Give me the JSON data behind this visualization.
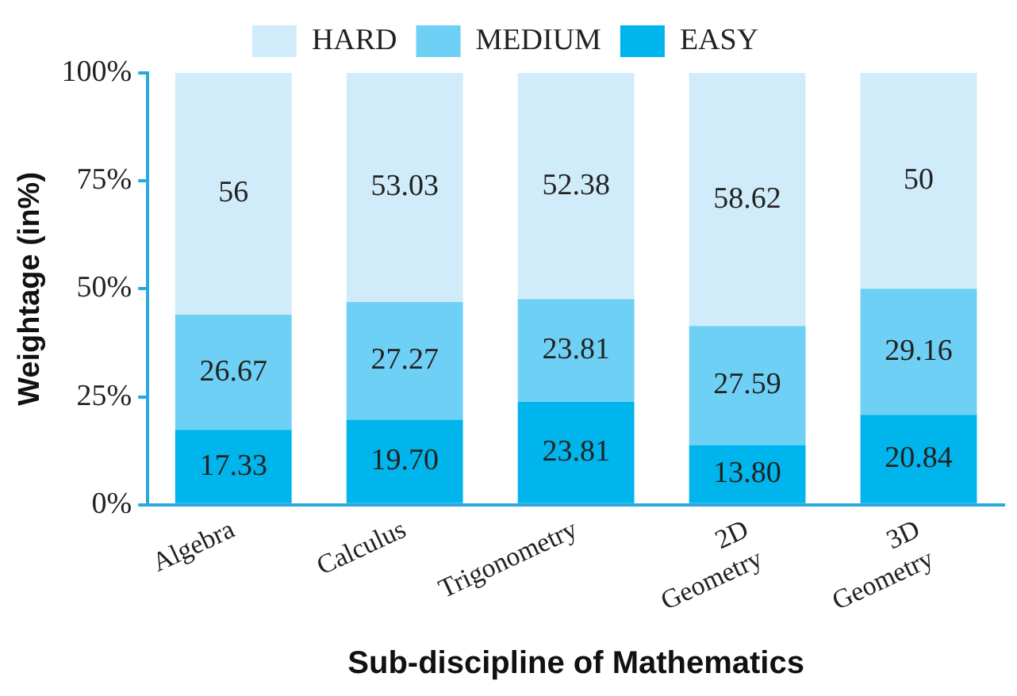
{
  "chart_data": {
    "type": "bar",
    "stacked": true,
    "xlabel": "Sub-discipline of Mathematics",
    "ylabel": "Weightage (in%)",
    "categories": [
      "Algebra",
      "Calculus",
      "Trigonometry",
      "2D Geometry",
      "3D Geometry"
    ],
    "series": [
      {
        "name": "EASY",
        "color": "#00b4ec",
        "values": [
          17.33,
          19.7,
          23.81,
          13.8,
          20.84
        ],
        "value_labels": [
          "17.33",
          "19.70",
          "23.81",
          "13.80",
          "20.84"
        ]
      },
      {
        "name": "MEDIUM",
        "color": "#6fd0f6",
        "values": [
          26.67,
          27.27,
          23.81,
          27.59,
          29.16
        ],
        "value_labels": [
          "26.67",
          "27.27",
          "23.81",
          "27.59",
          "29.16"
        ]
      },
      {
        "name": "HARD",
        "color": "#d0ecfa",
        "values": [
          56,
          53.03,
          52.38,
          58.62,
          50
        ],
        "value_labels": [
          "56",
          "53.03",
          "52.38",
          "58.62",
          "50"
        ]
      }
    ],
    "ylim": [
      0,
      100
    ],
    "yticks": [
      {
        "value": 0,
        "label": "0%"
      },
      {
        "value": 25,
        "label": "25%"
      },
      {
        "value": 50,
        "label": "50%"
      },
      {
        "value": 75,
        "label": "75%"
      },
      {
        "value": 100,
        "label": "100%"
      }
    ],
    "grid": false,
    "legend": "top"
  }
}
